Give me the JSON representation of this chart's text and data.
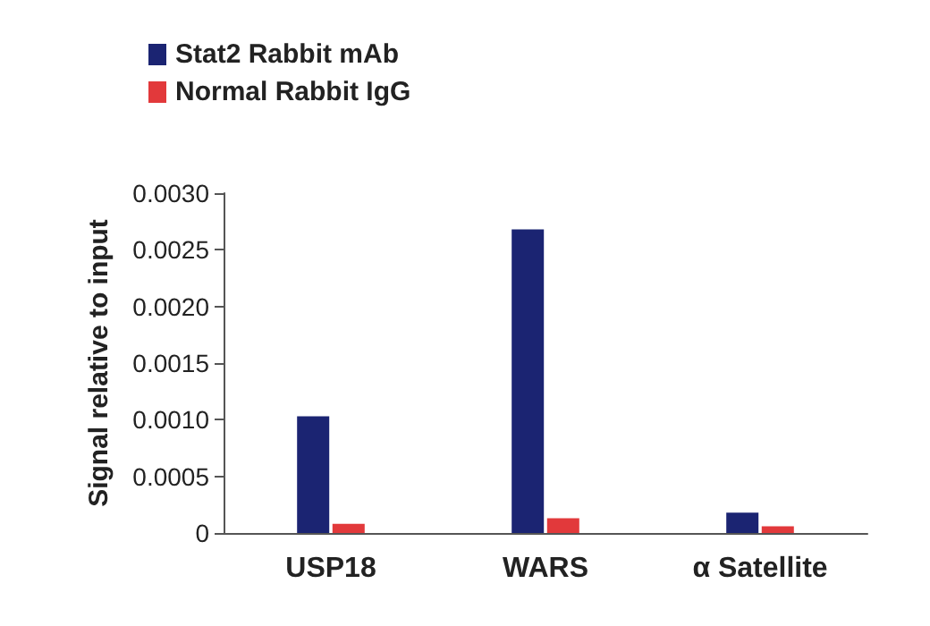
{
  "chart_data": {
    "type": "bar",
    "ylabel": "Signal relative to input",
    "categories": [
      "USP18",
      "WARS",
      "α Satellite"
    ],
    "series": [
      {
        "name": "Stat2 Rabbit mAb",
        "color": "#1b2472",
        "values": [
          0.00103,
          0.00268,
          0.00018
        ]
      },
      {
        "name": "Normal Rabbit IgG",
        "color": "#e2393b",
        "values": [
          8e-05,
          0.00013,
          6e-05
        ]
      }
    ],
    "ylim": [
      0,
      0.003
    ],
    "yticks": [
      0,
      0.0005,
      {
        "value": 0.001,
        "label": "0.0010"
      },
      0.0015,
      {
        "value": 0.002,
        "label": "0.0020"
      },
      0.0025,
      {
        "value": 0.003,
        "label": "0.0030"
      }
    ],
    "grid": false,
    "legend": "top left"
  }
}
